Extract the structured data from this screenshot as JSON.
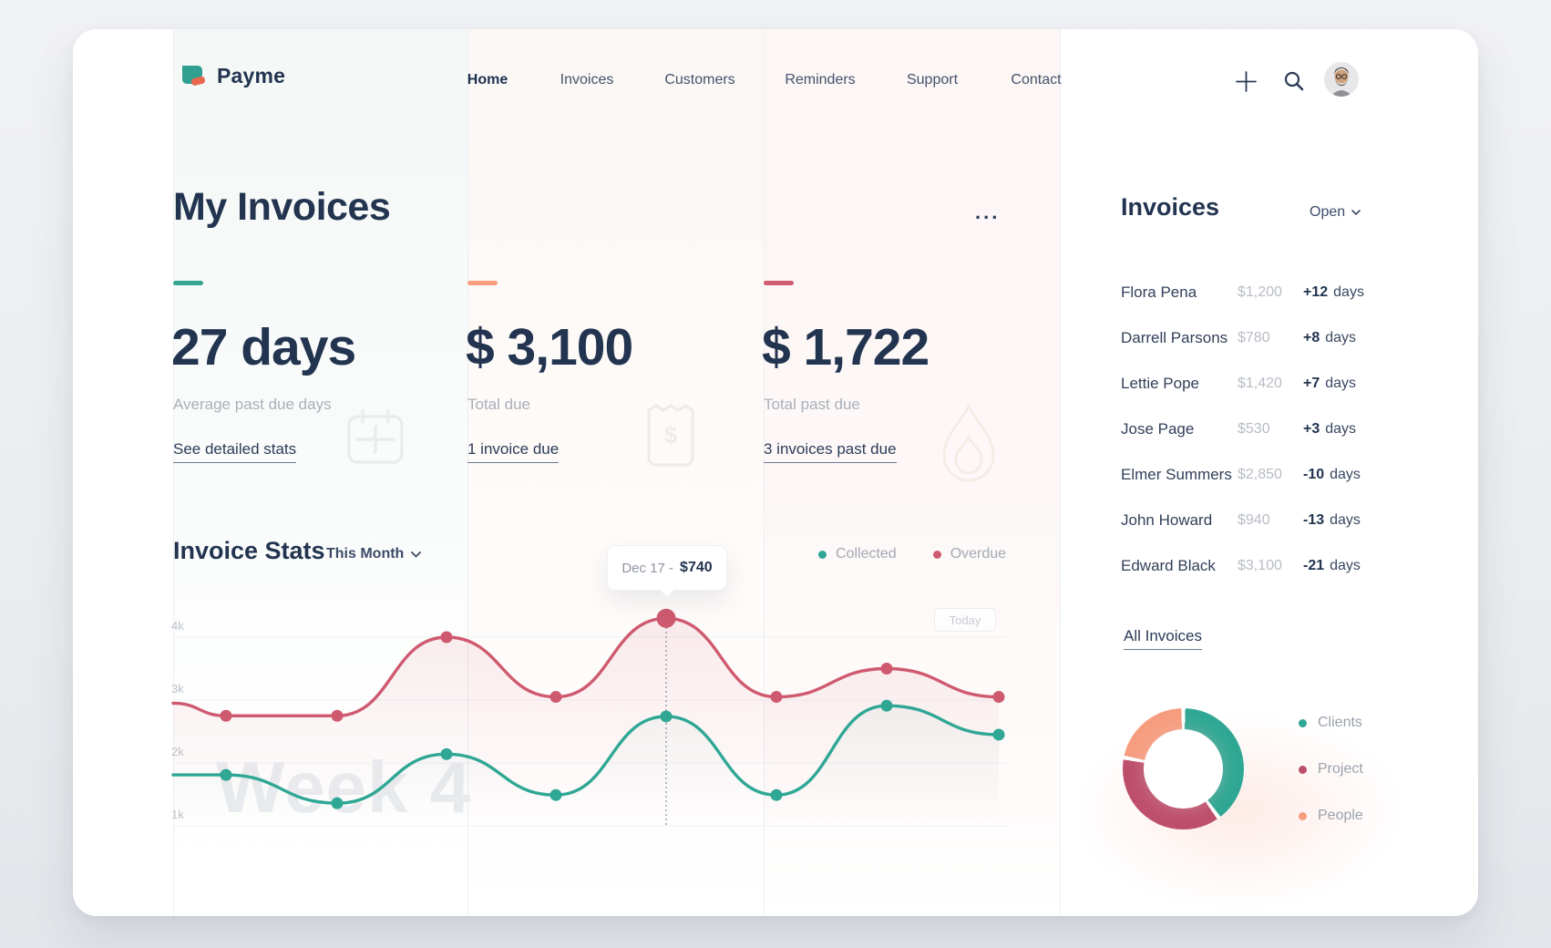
{
  "brand": {
    "name": "Payme",
    "logo_teal": "#2fa08f",
    "logo_coral": "#e8684f"
  },
  "nav": {
    "items": [
      {
        "label": "Home",
        "active": true
      },
      {
        "label": "Invoices",
        "active": false
      },
      {
        "label": "Customers",
        "active": false
      },
      {
        "label": "Reminders",
        "active": false
      },
      {
        "label": "Support",
        "active": false
      },
      {
        "label": "Contact",
        "active": false
      }
    ]
  },
  "main": {
    "title": "My Invoices",
    "cards": [
      {
        "accent": "#35a593",
        "value": "27 days",
        "caption": "Average past due days",
        "link": "See detailed stats",
        "icon": "calendar-icon"
      },
      {
        "accent": "#f79d7f",
        "value": "$ 3,100",
        "caption": "Total due",
        "link": "1 invoice due",
        "icon": "receipt-icon"
      },
      {
        "accent": "#d25b72",
        "value": "$ 1,722",
        "caption": "Total past due",
        "link": "3 invoices past due",
        "icon": "flame-icon",
        "menu": "..."
      }
    ],
    "stats": {
      "title": "Invoice Stats",
      "range": "This Month"
    }
  },
  "chart_data": [
    {
      "type": "line",
      "title": "Invoice Stats",
      "range": "This Month",
      "grid": true,
      "legend_position": "top-right",
      "ylim": [
        0.5,
        4.6
      ],
      "y_ticks": [
        {
          "label": "1k",
          "value": 1
        },
        {
          "label": "2k",
          "value": 2
        },
        {
          "label": "3k",
          "value": 3
        },
        {
          "label": "4k",
          "value": 4
        }
      ],
      "series": [
        {
          "name": "Collected",
          "color": "#2fa794",
          "values_k": [
            1.81,
            1.81,
            1.36,
            2.14,
            1.49,
            2.74,
            1.49,
            2.91,
            2.45
          ]
        },
        {
          "name": "Overdue",
          "color": "#cf5a6f",
          "values_k": [
            2.95,
            2.75,
            2.75,
            4.0,
            3.05,
            4.3,
            3.05,
            3.5,
            3.05
          ]
        }
      ],
      "highlight": {
        "series": "Overdue",
        "index": 5,
        "date_label": "Dec 17 -",
        "value_label": "$740"
      },
      "annotations": {
        "today_label": "Today"
      },
      "watermark": "Week 4"
    },
    {
      "type": "donut",
      "slices": [
        {
          "label": "Clients",
          "value": 40,
          "color": "#2fa794"
        },
        {
          "label": "Project",
          "value": 38,
          "color": "#bd4f6c"
        },
        {
          "label": "People",
          "value": 22,
          "color": "#f79d7f"
        }
      ]
    }
  ],
  "sidebar": {
    "title": "Invoices",
    "filter": "Open",
    "invoices": [
      {
        "name": "Flora Pena",
        "amount": "$1,200",
        "days": "+12",
        "days_unit": "days"
      },
      {
        "name": "Darrell Parsons",
        "amount": "$780",
        "days": "+8",
        "days_unit": "days"
      },
      {
        "name": "Lettie Pope",
        "amount": "$1,420",
        "days": "+7",
        "days_unit": "days"
      },
      {
        "name": "Jose Page",
        "amount": "$530",
        "days": "+3",
        "days_unit": "days"
      },
      {
        "name": "Elmer Summers",
        "amount": "$2,850",
        "days": "-10",
        "days_unit": "days"
      },
      {
        "name": "John Howard",
        "amount": "$940",
        "days": "-13",
        "days_unit": "days"
      },
      {
        "name": "Edward Black",
        "amount": "$3,100",
        "days": "-21",
        "days_unit": "days"
      }
    ],
    "all_link": "All Invoices"
  }
}
